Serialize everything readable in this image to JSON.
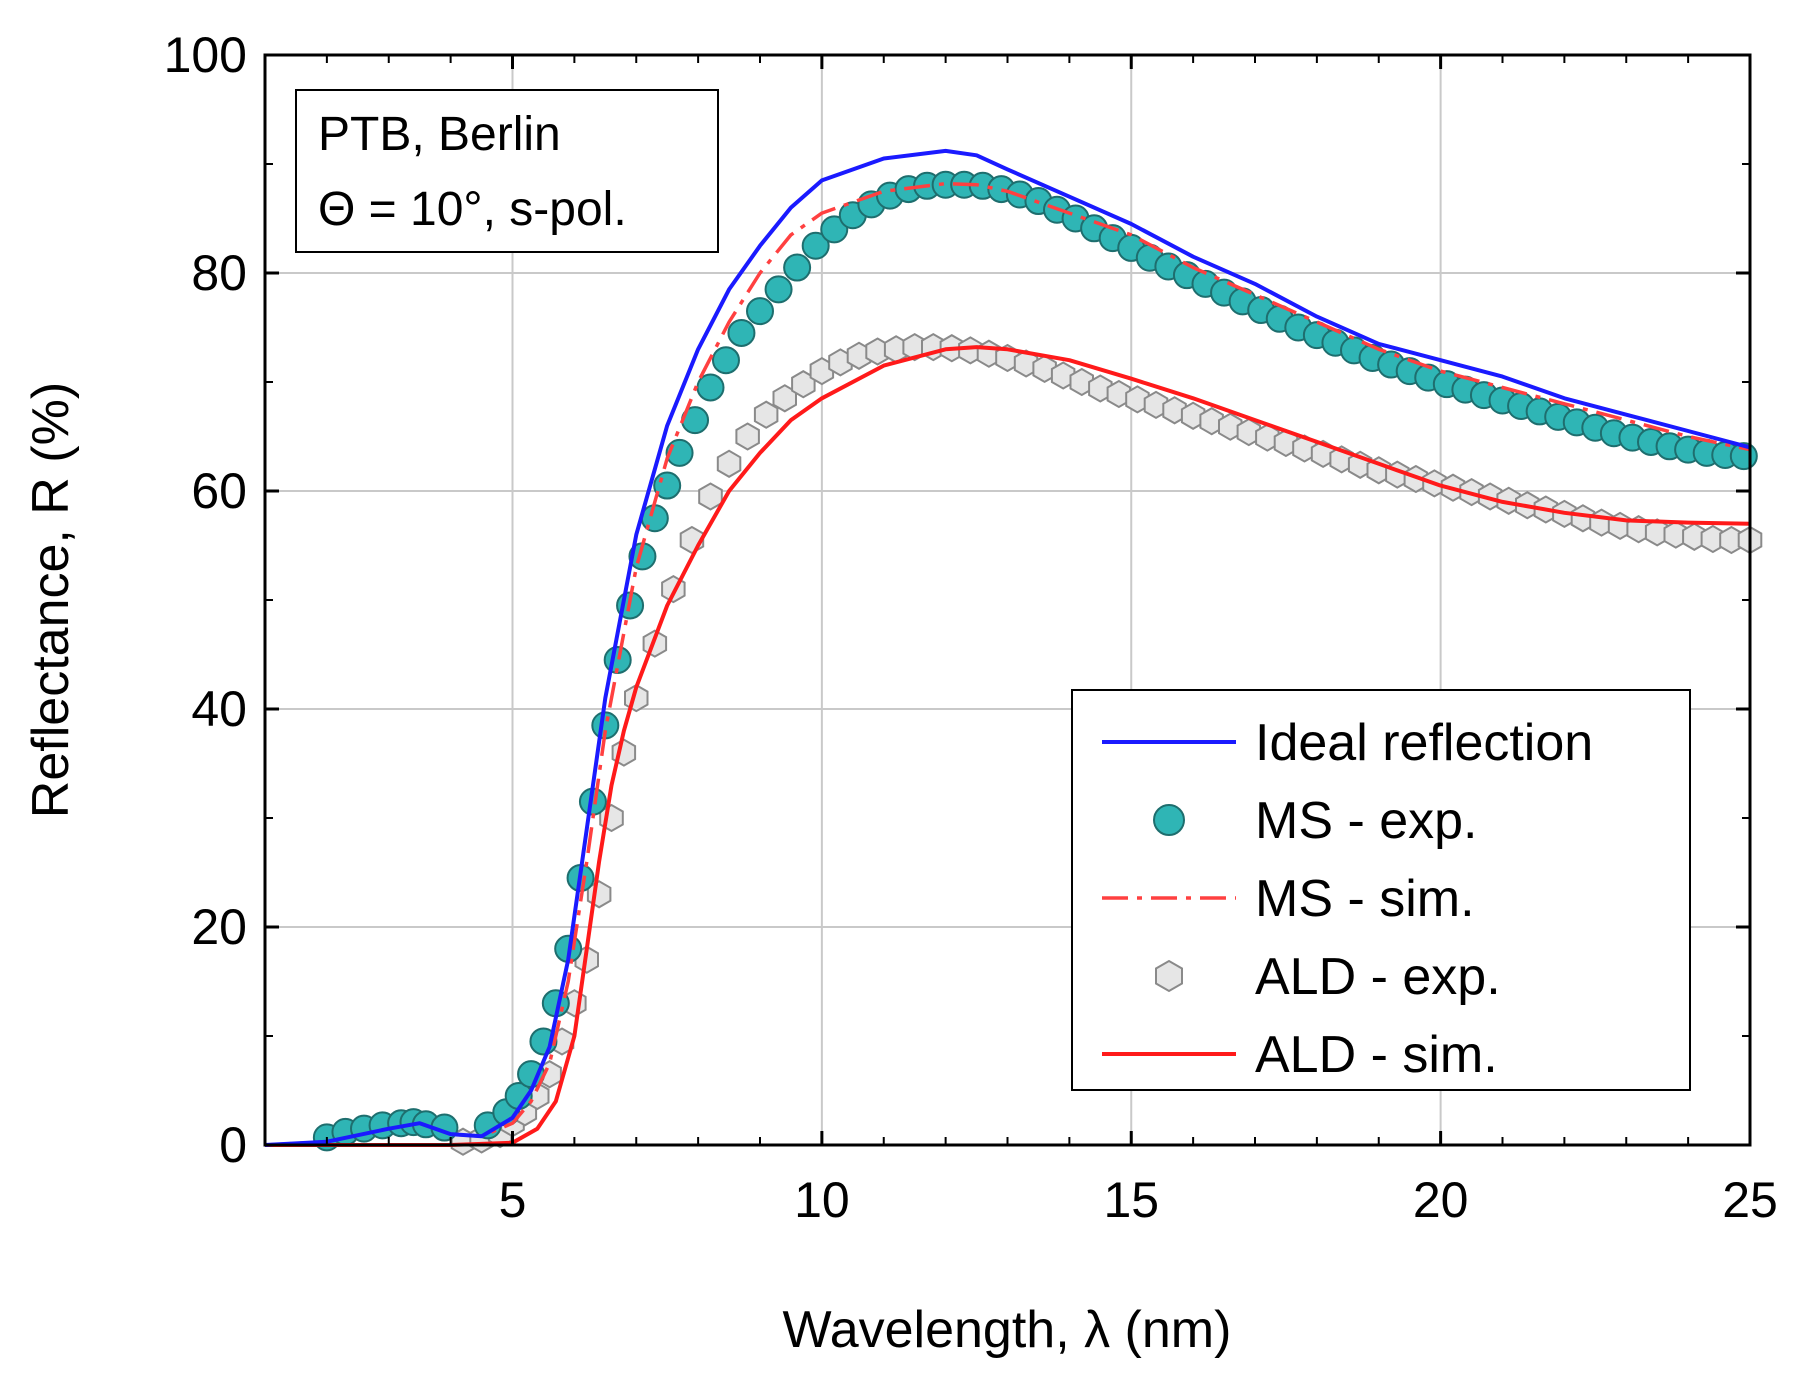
{
  "chart_data": {
    "type": "line",
    "title": "",
    "xlabel": "Wavelength, λ (nm)",
    "ylabel": "Reflectance, R (%)",
    "xlim": [
      1,
      25
    ],
    "ylim": [
      0,
      100
    ],
    "xticks": [
      5,
      10,
      15,
      20,
      25
    ],
    "yticks": [
      0,
      20,
      40,
      60,
      80,
      100
    ],
    "grid": true,
    "annotation": [
      "PTB, Berlin",
      "Θ = 10°, s-pol."
    ],
    "legend_position": "bottom-right",
    "series": [
      {
        "name": "Ideal reflection",
        "kind": "line",
        "color": "#1a1aff",
        "dash": "solid",
        "x": [
          1,
          2,
          3,
          3.5,
          4,
          4.5,
          5,
          5.3,
          5.6,
          5.9,
          6.2,
          6.5,
          6.8,
          7,
          7.5,
          8,
          8.5,
          9,
          9.5,
          10,
          11,
          12,
          12.5,
          13,
          14,
          15,
          16,
          17,
          18,
          19,
          20,
          21,
          22,
          23,
          24,
          25
        ],
        "y": [
          0,
          0.3,
          1.5,
          2,
          1,
          0.8,
          2.5,
          5,
          9,
          17,
          29,
          41,
          50,
          56,
          66,
          73,
          78.5,
          82.5,
          86,
          88.5,
          90.5,
          91.2,
          90.8,
          89.5,
          87,
          84.5,
          81.5,
          79,
          76,
          73.5,
          72,
          70.5,
          68.5,
          67,
          65.5,
          64
        ]
      },
      {
        "name": "MS - exp.",
        "kind": "markers",
        "marker": "circle",
        "color": "#2fb5b5",
        "edge": "#1e6e6e",
        "x": [
          2,
          2.3,
          2.6,
          2.9,
          3.2,
          3.4,
          3.6,
          3.9,
          4.6,
          4.9,
          5.1,
          5.3,
          5.5,
          5.7,
          5.9,
          6.1,
          6.3,
          6.5,
          6.7,
          6.9,
          7.1,
          7.3,
          7.5,
          7.7,
          7.95,
          8.2,
          8.45,
          8.7,
          9,
          9.3,
          9.6,
          9.9,
          10.2,
          10.5,
          10.8,
          11.1,
          11.4,
          11.7,
          12,
          12.3,
          12.6,
          12.9,
          13.2,
          13.5,
          13.8,
          14.1,
          14.4,
          14.7,
          15,
          15.3,
          15.6,
          15.9,
          16.2,
          16.5,
          16.8,
          17.1,
          17.4,
          17.7,
          18,
          18.3,
          18.6,
          18.9,
          19.2,
          19.5,
          19.8,
          20.1,
          20.4,
          20.7,
          21,
          21.3,
          21.6,
          21.9,
          22.2,
          22.5,
          22.8,
          23.1,
          23.4,
          23.7,
          24,
          24.3,
          24.6,
          24.9
        ],
        "y": [
          0.7,
          1.2,
          1.5,
          1.8,
          2,
          2.1,
          1.9,
          1.6,
          1.8,
          3,
          4.5,
          6.5,
          9.5,
          13,
          18,
          24.5,
          31.5,
          38.5,
          44.5,
          49.5,
          54,
          57.5,
          60.5,
          63.5,
          66.5,
          69.5,
          72,
          74.5,
          76.5,
          78.5,
          80.5,
          82.5,
          84,
          85.3,
          86.3,
          87.1,
          87.7,
          88,
          88.1,
          88.1,
          88,
          87.7,
          87.2,
          86.6,
          85.8,
          85,
          84.1,
          83.2,
          82.3,
          81.4,
          80.6,
          79.8,
          79,
          78.2,
          77.4,
          76.6,
          75.8,
          75,
          74.3,
          73.6,
          72.9,
          72.2,
          71.6,
          71,
          70.4,
          69.8,
          69.3,
          68.8,
          68.3,
          67.8,
          67.3,
          66.8,
          66.3,
          65.8,
          65.3,
          64.9,
          64.5,
          64.1,
          63.8,
          63.5,
          63.3,
          63.2
        ]
      },
      {
        "name": "MS - sim.",
        "kind": "line",
        "color": "#ff4040",
        "dash": "dashdot",
        "x": [
          1,
          2,
          3,
          3.5,
          4,
          4.5,
          5,
          5.3,
          5.6,
          5.9,
          6.2,
          6.5,
          6.8,
          7,
          7.5,
          8,
          8.5,
          9,
          9.5,
          10,
          11,
          12,
          12.5,
          13,
          14,
          15,
          16,
          17,
          18,
          19,
          20,
          21,
          22,
          23,
          24,
          25
        ],
        "y": [
          0,
          0.3,
          1.5,
          2,
          1,
          0.8,
          2,
          4,
          7.5,
          15,
          26,
          38,
          47,
          53,
          63,
          70,
          75.5,
          80,
          83.5,
          85.5,
          87.5,
          88.2,
          88.1,
          87.5,
          85.5,
          83.5,
          80.5,
          78,
          75.5,
          73,
          71,
          69.5,
          68,
          66.5,
          65,
          63.8
        ]
      },
      {
        "name": "ALD - exp.",
        "kind": "markers",
        "marker": "hexagon",
        "color": "#e6e6e6",
        "edge": "#8a8a8a",
        "x": [
          4.2,
          4.5,
          4.8,
          5,
          5.2,
          5.4,
          5.6,
          5.8,
          6,
          6.2,
          6.4,
          6.6,
          6.8,
          7,
          7.3,
          7.6,
          7.9,
          8.2,
          8.5,
          8.8,
          9.1,
          9.4,
          9.7,
          10,
          10.3,
          10.6,
          10.9,
          11.2,
          11.5,
          11.8,
          12.1,
          12.4,
          12.7,
          13,
          13.3,
          13.6,
          13.9,
          14.2,
          14.5,
          14.8,
          15.1,
          15.4,
          15.7,
          16,
          16.3,
          16.6,
          16.9,
          17.2,
          17.5,
          17.8,
          18.1,
          18.4,
          18.7,
          19,
          19.3,
          19.6,
          19.9,
          20.2,
          20.5,
          20.8,
          21.1,
          21.4,
          21.7,
          22,
          22.3,
          22.6,
          22.9,
          23.2,
          23.5,
          23.8,
          24.1,
          24.4,
          24.7,
          25
        ],
        "y": [
          0.3,
          0.5,
          1,
          2,
          3,
          4.5,
          6.5,
          9.5,
          13,
          17,
          23,
          30,
          36,
          41,
          46,
          51,
          55.5,
          59.5,
          62.5,
          65,
          67,
          68.5,
          69.8,
          71,
          71.8,
          72.4,
          72.8,
          73,
          73.2,
          73.2,
          73.1,
          72.9,
          72.6,
          72.2,
          71.7,
          71.2,
          70.6,
          70,
          69.4,
          68.9,
          68.4,
          67.9,
          67.4,
          66.9,
          66.4,
          65.9,
          65.4,
          64.9,
          64.4,
          63.9,
          63.4,
          62.9,
          62.4,
          61.9,
          61.5,
          61.1,
          60.7,
          60.3,
          59.9,
          59.5,
          59.1,
          58.7,
          58.3,
          57.9,
          57.5,
          57.1,
          56.8,
          56.5,
          56.2,
          56,
          55.8,
          55.6,
          55.5,
          55.5
        ]
      },
      {
        "name": "ALD - sim.",
        "kind": "line",
        "color": "#ff1a1a",
        "dash": "solid",
        "x": [
          1,
          2,
          3,
          4,
          5,
          5.4,
          5.7,
          6,
          6.2,
          6.4,
          6.6,
          6.8,
          7,
          7.5,
          8,
          8.5,
          9,
          9.5,
          10,
          11,
          12,
          12.5,
          13,
          14,
          15,
          16,
          17,
          18,
          19,
          20,
          21,
          22,
          23,
          24,
          25
        ],
        "y": [
          0,
          0,
          0,
          0,
          0.2,
          1.5,
          4,
          10,
          18,
          26,
          33,
          38,
          42,
          49.5,
          55,
          60,
          63.5,
          66.5,
          68.5,
          71.5,
          73,
          73.2,
          73,
          72,
          70.3,
          68.5,
          66.5,
          64.5,
          62.5,
          60.5,
          59,
          58,
          57.3,
          57.1,
          57
        ]
      }
    ]
  }
}
